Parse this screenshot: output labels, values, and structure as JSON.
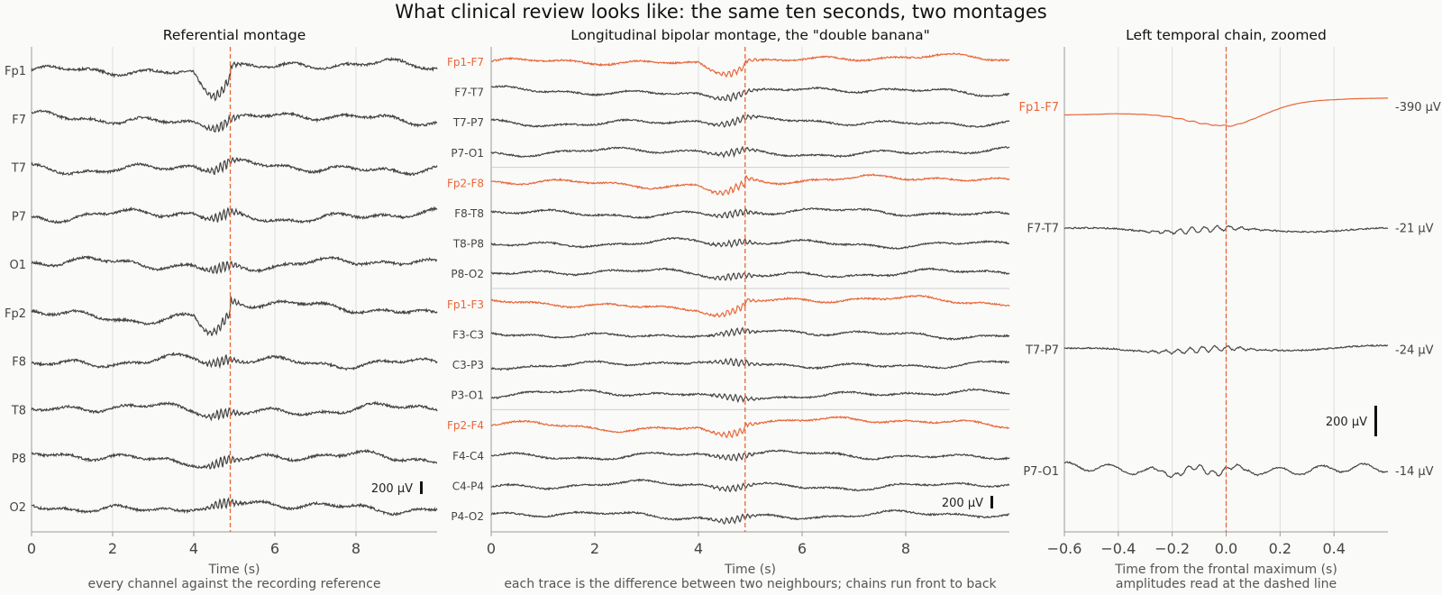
{
  "title": "What clinical review looks like: the same ten seconds, two montages",
  "colors": {
    "accent": "#e8673a",
    "trace": "#444444",
    "axis": "#666666",
    "grid": "#dddddd",
    "background": "#fafaf8"
  },
  "chart_data": [
    {
      "type": "line",
      "title": "Referential montage",
      "xlabel": "Time (s)",
      "subtitle": "every channel against the recording reference",
      "xlim": [
        0,
        10
      ],
      "xticks": [
        0,
        2,
        4,
        6,
        8
      ],
      "grid": "vertical",
      "marker_x": 4.9,
      "channels": [
        "Fp1",
        "F7",
        "T7",
        "P7",
        "O1",
        "Fp2",
        "F8",
        "T8",
        "P8",
        "O2"
      ],
      "highlighted_channels": [],
      "scale_bar": "200 µV"
    },
    {
      "type": "line",
      "title": "Longitudinal bipolar montage, the \"double banana\"",
      "xlabel": "Time (s)",
      "subtitle": "each trace is the difference between two neighbours; chains run front to back",
      "xlim": [
        0,
        10
      ],
      "xticks": [
        0,
        2,
        4,
        6,
        8
      ],
      "grid": "vertical",
      "marker_x": 4.9,
      "channels": [
        "Fp1-F7",
        "F7-T7",
        "T7-P7",
        "P7-O1",
        "Fp2-F8",
        "F8-T8",
        "T8-P8",
        "P8-O2",
        "Fp1-F3",
        "F3-C3",
        "C3-P3",
        "P3-O1",
        "Fp2-F4",
        "F4-C4",
        "C4-P4",
        "P4-O2"
      ],
      "highlighted_channels": [
        "Fp1-F7",
        "Fp2-F8",
        "Fp1-F3",
        "Fp2-F4"
      ],
      "chain_separators_after": [
        "P7-O1",
        "P8-O2",
        "P3-O1"
      ],
      "scale_bar": "200 µV"
    },
    {
      "type": "line",
      "title": "Left temporal chain, zoomed",
      "xlabel": "Time from the frontal maximum (s)",
      "subtitle": "amplitudes read at the dashed line",
      "xlim": [
        -0.6,
        0.6
      ],
      "xticks": [
        "−0.6",
        "−0.4",
        "−0.2",
        "0.0",
        "0.2",
        "0.4"
      ],
      "grid": "vertical",
      "marker_x": 0.0,
      "channels": [
        "Fp1-F7",
        "F7-T7",
        "T7-P7",
        "P7-O1"
      ],
      "highlighted_channels": [
        "Fp1-F7"
      ],
      "amplitudes_at_marker": [
        "-390 µV",
        "-21 µV",
        "-24 µV",
        "-14 µV"
      ],
      "scale_bar": "200 µV"
    }
  ]
}
